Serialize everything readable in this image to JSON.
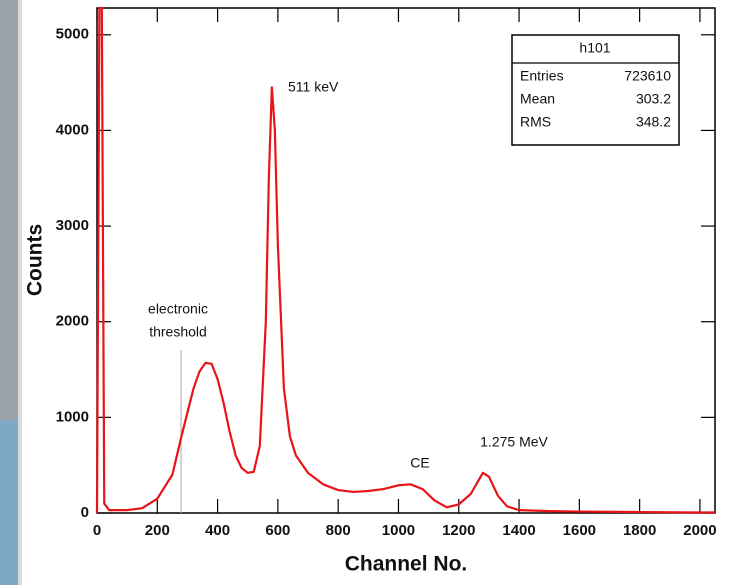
{
  "chart_data": {
    "type": "line",
    "xlabel": "Channel No.",
    "ylabel": "Counts",
    "color": "#e8141a",
    "x": [
      0,
      8,
      16,
      24,
      40,
      100,
      150,
      200,
      250,
      280,
      300,
      320,
      340,
      360,
      380,
      400,
      420,
      440,
      460,
      480,
      500,
      520,
      540,
      560,
      570,
      580,
      590,
      600,
      620,
      640,
      660,
      700,
      750,
      800,
      850,
      900,
      950,
      1000,
      1040,
      1080,
      1120,
      1160,
      1200,
      1240,
      1280,
      1300,
      1330,
      1360,
      1400,
      1500,
      1600,
      1800,
      2000,
      2050
    ],
    "values": [
      0,
      5280,
      5280,
      100,
      30,
      30,
      50,
      150,
      400,
      800,
      1050,
      1300,
      1480,
      1570,
      1560,
      1400,
      1150,
      850,
      600,
      470,
      420,
      430,
      700,
      2000,
      3500,
      4450,
      4000,
      2800,
      1300,
      800,
      600,
      420,
      300,
      240,
      220,
      230,
      250,
      290,
      300,
      250,
      130,
      60,
      90,
      200,
      420,
      380,
      180,
      70,
      30,
      20,
      15,
      10,
      5,
      5
    ],
    "xlim": [
      0,
      2050
    ],
    "ylim": [
      0,
      5280
    ],
    "xticks": [
      0,
      200,
      400,
      600,
      800,
      1000,
      1200,
      1400,
      1600,
      1800,
      2000
    ],
    "yticks": [
      0,
      1000,
      2000,
      3000,
      4000,
      5000
    ],
    "annotations": {
      "peak": "511 keV",
      "threshold": [
        "electronic",
        "threshold"
      ],
      "ce": "CE",
      "peak2": "1.275 MeV"
    },
    "stats": {
      "title": "h101",
      "rows": [
        [
          "Entries",
          723610
        ],
        [
          "Mean",
          303.2
        ],
        [
          "RMS",
          348.2
        ]
      ]
    }
  }
}
